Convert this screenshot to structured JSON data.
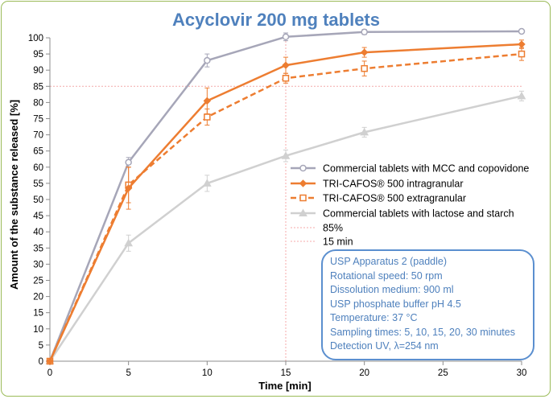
{
  "chart_data": {
    "type": "line",
    "title": "Acyclovir 200 mg tablets",
    "xlabel": "Time [min]",
    "ylabel": "Amount of the substance released [%]",
    "x": [
      0,
      5,
      10,
      15,
      20,
      30
    ],
    "xlim": [
      0,
      30
    ],
    "ylim": [
      0,
      100
    ],
    "xticks": [
      0,
      5,
      10,
      15,
      20,
      25,
      30
    ],
    "yticks": [
      0,
      5,
      10,
      15,
      20,
      25,
      30,
      35,
      40,
      45,
      50,
      55,
      60,
      65,
      70,
      75,
      80,
      85,
      90,
      95,
      100
    ],
    "series": [
      {
        "name": "Commercial tablets with MCC and copovidone",
        "values": [
          0,
          61.5,
          93,
          100.3,
          101.8,
          102
        ],
        "errors": [
          0,
          1.5,
          2,
          1.2,
          0.8,
          0.6
        ],
        "color": "#a6a6b8",
        "marker": "circle",
        "dash": "solid"
      },
      {
        "name": "TRI-CAFOS® 500 intragranular",
        "values": [
          0,
          53.5,
          80.5,
          91.5,
          95.5,
          98
        ],
        "errors": [
          0,
          6.5,
          4,
          2.5,
          1.5,
          1.3
        ],
        "color": "#ed7d31",
        "marker": "diamond",
        "dash": "solid"
      },
      {
        "name": "TRI-CAFOS® 500 extragranular",
        "values": [
          0,
          54.5,
          75.5,
          87.5,
          90.5,
          95
        ],
        "errors": [
          0,
          5.5,
          2.5,
          1.5,
          2.3,
          2
        ],
        "color": "#ed7d31",
        "marker": "square",
        "dash": "dashed"
      },
      {
        "name": "Commercial tablets with lactose and starch",
        "values": [
          0,
          36.5,
          55,
          63.5,
          70.8,
          82
        ],
        "errors": [
          0,
          2.5,
          2.5,
          1.8,
          1.5,
          1.5
        ],
        "color": "#d0d0d0",
        "marker": "triangle",
        "dash": "solid"
      }
    ],
    "reference_lines": [
      {
        "name": "85%",
        "axis": "y",
        "value": 85,
        "color": "#f4a9a9"
      },
      {
        "name": "15 min",
        "axis": "x",
        "value": 15,
        "color": "#f4a9a9"
      }
    ],
    "legend_position": "right"
  },
  "info_box": {
    "lines": [
      "USP Apparatus 2 (paddle)",
      "Rotational speed: 50 rpm",
      "Dissolution medium: 900 ml",
      "USP phosphate buffer pH 4.5",
      "Temperature: 37 °C",
      "Sampling times: 5, 10, 15, 20, 30 minutes",
      "Detection UV, λ=254 nm"
    ]
  }
}
